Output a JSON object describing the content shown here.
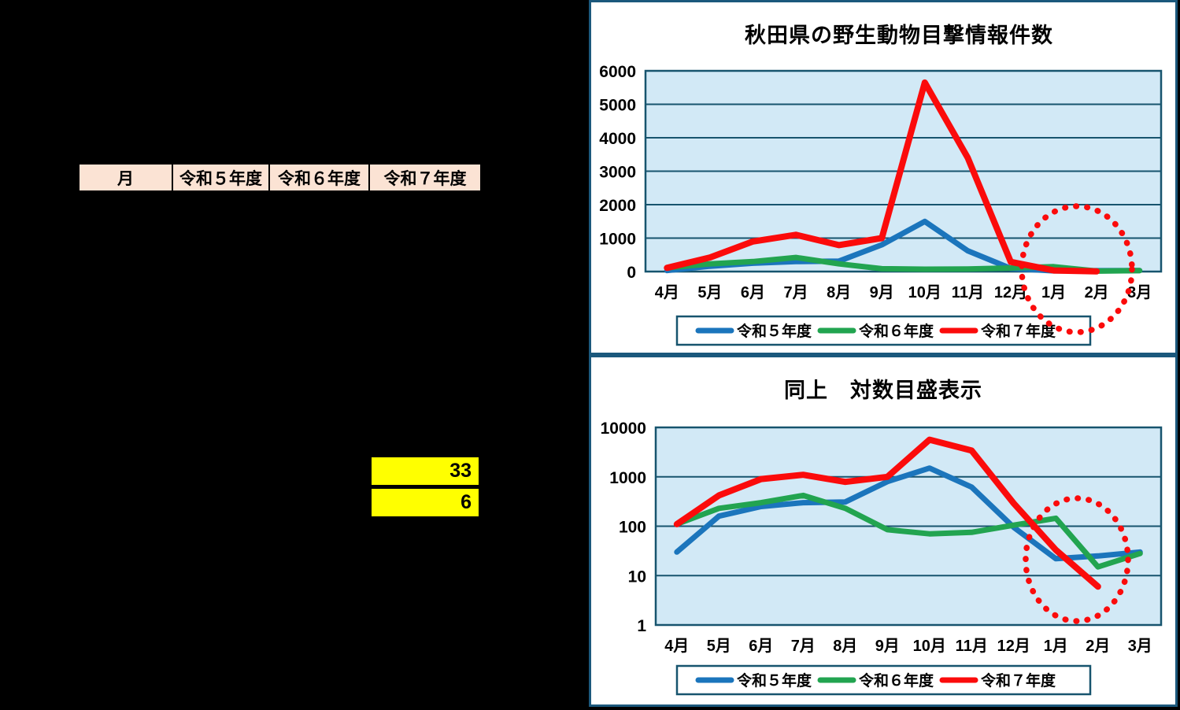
{
  "table": {
    "headers": [
      "月",
      "令和５年度",
      "令和６年度",
      "令和７年度"
    ],
    "highlight_values": [
      "33",
      "6"
    ]
  },
  "style": {
    "background": "#000000",
    "panel_bg": "#FFFFFF",
    "panel_border": "#1B587C",
    "plot_fill": "#D2E9F6",
    "grid": "#17546E",
    "header_bg": "#FBE3D4",
    "highlight_bg": "#FFFF00",
    "annotation": "#FB0B0B",
    "series_blue": "#1B75BC",
    "series_green": "#22A450",
    "series_red": "#FB0B0B"
  },
  "chart_data": [
    {
      "type": "line",
      "title": "秋田県の野生動物目撃情報件数",
      "categories": [
        "4月",
        "5月",
        "6月",
        "7月",
        "8月",
        "9月",
        "10月",
        "11月",
        "12月",
        "1月",
        "2月",
        "3月"
      ],
      "series": [
        {
          "name": "令和５年度",
          "color": "#1B75BC",
          "values": [
            30,
            160,
            250,
            300,
            310,
            800,
            1500,
            620,
            95,
            22,
            25,
            30
          ]
        },
        {
          "name": "令和６年度",
          "color": "#22A450",
          "values": [
            110,
            230,
            300,
            420,
            230,
            85,
            70,
            75,
            105,
            145,
            15,
            28
          ]
        },
        {
          "name": "令和７年度",
          "color": "#FB0B0B",
          "values": [
            110,
            420,
            900,
            1100,
            790,
            1000,
            5650,
            3400,
            290,
            33,
            6,
            null
          ]
        }
      ],
      "y_axis": {
        "scale": "linear",
        "min": 0,
        "max": 6000,
        "ticks": [
          0,
          1000,
          2000,
          3000,
          4000,
          5000,
          6000
        ]
      },
      "xlabel": "",
      "ylabel": "",
      "grid": true,
      "legend_position": "bottom",
      "annotation": "red dotted ellipse highlighting 1月-2月 region"
    },
    {
      "type": "line",
      "title": "同上　対数目盛表示",
      "categories": [
        "4月",
        "5月",
        "6月",
        "7月",
        "8月",
        "9月",
        "10月",
        "11月",
        "12月",
        "1月",
        "2月",
        "3月"
      ],
      "series": [
        {
          "name": "令和５年度",
          "color": "#1B75BC",
          "values": [
            30,
            160,
            250,
            300,
            310,
            800,
            1500,
            620,
            95,
            22,
            25,
            30
          ]
        },
        {
          "name": "令和６年度",
          "color": "#22A450",
          "values": [
            110,
            230,
            300,
            420,
            230,
            85,
            70,
            75,
            105,
            145,
            15,
            28
          ]
        },
        {
          "name": "令和７年度",
          "color": "#FB0B0B",
          "values": [
            110,
            420,
            900,
            1100,
            790,
            1000,
            5650,
            3400,
            290,
            33,
            6,
            null
          ]
        }
      ],
      "y_axis": {
        "scale": "log",
        "min": 1,
        "max": 10000,
        "ticks": [
          1,
          10,
          100,
          1000,
          10000
        ]
      },
      "xlabel": "",
      "ylabel": "",
      "grid": true,
      "legend_position": "bottom",
      "annotation": "red dotted ellipse highlighting 1月-2月 region"
    }
  ]
}
